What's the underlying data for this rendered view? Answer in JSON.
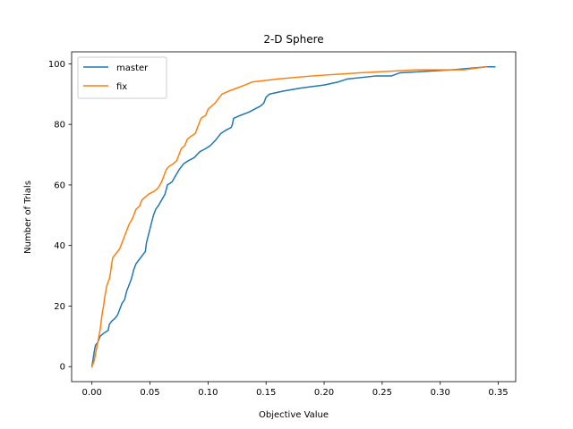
{
  "chart_data": {
    "type": "line",
    "title": "2-D Sphere",
    "xlabel": "Objective Value",
    "ylabel": "Number of Trials",
    "xlim": [
      -0.0175,
      0.365
    ],
    "ylim": [
      -4.95,
      103.95
    ],
    "xticks": [
      0.0,
      0.05,
      0.1,
      0.15,
      0.2,
      0.25,
      0.3,
      0.35
    ],
    "xtick_labels": [
      "0.00",
      "0.05",
      "0.10",
      "0.15",
      "0.20",
      "0.25",
      "0.30",
      "0.35"
    ],
    "yticks": [
      0,
      20,
      40,
      60,
      80,
      100
    ],
    "ytick_labels": [
      "0",
      "20",
      "40",
      "60",
      "80",
      "100"
    ],
    "grid": false,
    "legend_position": "top-left",
    "series": [
      {
        "name": "master",
        "color": "#1f77b4",
        "points": [
          [
            0.0,
            0
          ],
          [
            0.002,
            5
          ],
          [
            0.003,
            7
          ],
          [
            0.005,
            8
          ],
          [
            0.007,
            10
          ],
          [
            0.01,
            11
          ],
          [
            0.014,
            12
          ],
          [
            0.015,
            14
          ],
          [
            0.017,
            15
          ],
          [
            0.02,
            16
          ],
          [
            0.022,
            17
          ],
          [
            0.024,
            19
          ],
          [
            0.026,
            21
          ],
          [
            0.028,
            22
          ],
          [
            0.03,
            25
          ],
          [
            0.032,
            27
          ],
          [
            0.034,
            29
          ],
          [
            0.036,
            32
          ],
          [
            0.038,
            34
          ],
          [
            0.042,
            36
          ],
          [
            0.046,
            38
          ],
          [
            0.047,
            41
          ],
          [
            0.049,
            44
          ],
          [
            0.051,
            47
          ],
          [
            0.053,
            50
          ],
          [
            0.055,
            52
          ],
          [
            0.057,
            53
          ],
          [
            0.06,
            55
          ],
          [
            0.063,
            57
          ],
          [
            0.065,
            60
          ],
          [
            0.069,
            61
          ],
          [
            0.072,
            63
          ],
          [
            0.075,
            65
          ],
          [
            0.079,
            67
          ],
          [
            0.083,
            68
          ],
          [
            0.088,
            69
          ],
          [
            0.093,
            71
          ],
          [
            0.098,
            72
          ],
          [
            0.102,
            73
          ],
          [
            0.107,
            75
          ],
          [
            0.111,
            77
          ],
          [
            0.115,
            78
          ],
          [
            0.12,
            79
          ],
          [
            0.121,
            80
          ],
          [
            0.122,
            82
          ],
          [
            0.128,
            83
          ],
          [
            0.135,
            84
          ],
          [
            0.14,
            85
          ],
          [
            0.145,
            86
          ],
          [
            0.148,
            87
          ],
          [
            0.149,
            88
          ],
          [
            0.15,
            89
          ],
          [
            0.153,
            90
          ],
          [
            0.165,
            91
          ],
          [
            0.18,
            92
          ],
          [
            0.2,
            93
          ],
          [
            0.212,
            94
          ],
          [
            0.22,
            95
          ],
          [
            0.245,
            96
          ],
          [
            0.258,
            96
          ],
          [
            0.265,
            97
          ],
          [
            0.31,
            98
          ],
          [
            0.34,
            99
          ],
          [
            0.347,
            99
          ]
        ]
      },
      {
        "name": "fix",
        "color": "#ff7f0e",
        "points": [
          [
            0.0,
            0
          ],
          [
            0.002,
            2
          ],
          [
            0.003,
            4
          ],
          [
            0.004,
            6
          ],
          [
            0.005,
            8
          ],
          [
            0.006,
            10
          ],
          [
            0.007,
            12
          ],
          [
            0.008,
            15
          ],
          [
            0.009,
            18
          ],
          [
            0.01,
            20
          ],
          [
            0.011,
            23
          ],
          [
            0.012,
            25
          ],
          [
            0.013,
            27
          ],
          [
            0.015,
            29
          ],
          [
            0.016,
            31
          ],
          [
            0.017,
            34
          ],
          [
            0.018,
            36
          ],
          [
            0.02,
            37
          ],
          [
            0.022,
            38
          ],
          [
            0.024,
            39
          ],
          [
            0.026,
            41
          ],
          [
            0.028,
            43
          ],
          [
            0.03,
            45
          ],
          [
            0.032,
            47
          ],
          [
            0.035,
            49
          ],
          [
            0.038,
            52
          ],
          [
            0.041,
            53
          ],
          [
            0.043,
            55
          ],
          [
            0.046,
            56
          ],
          [
            0.049,
            57
          ],
          [
            0.054,
            58
          ],
          [
            0.057,
            59
          ],
          [
            0.06,
            61
          ],
          [
            0.062,
            63
          ],
          [
            0.064,
            65
          ],
          [
            0.066,
            66
          ],
          [
            0.07,
            67
          ],
          [
            0.073,
            68
          ],
          [
            0.075,
            70
          ],
          [
            0.077,
            72
          ],
          [
            0.08,
            73
          ],
          [
            0.082,
            75
          ],
          [
            0.085,
            76
          ],
          [
            0.089,
            77
          ],
          [
            0.092,
            80
          ],
          [
            0.094,
            82
          ],
          [
            0.098,
            83
          ],
          [
            0.1,
            85
          ],
          [
            0.103,
            86
          ],
          [
            0.106,
            87
          ],
          [
            0.108,
            88
          ],
          [
            0.11,
            89
          ],
          [
            0.112,
            90
          ],
          [
            0.118,
            91
          ],
          [
            0.125,
            92
          ],
          [
            0.132,
            93
          ],
          [
            0.138,
            94
          ],
          [
            0.16,
            95
          ],
          [
            0.19,
            96
          ],
          [
            0.23,
            97
          ],
          [
            0.28,
            98
          ],
          [
            0.32,
            98
          ],
          [
            0.34,
            99
          ]
        ]
      }
    ]
  }
}
